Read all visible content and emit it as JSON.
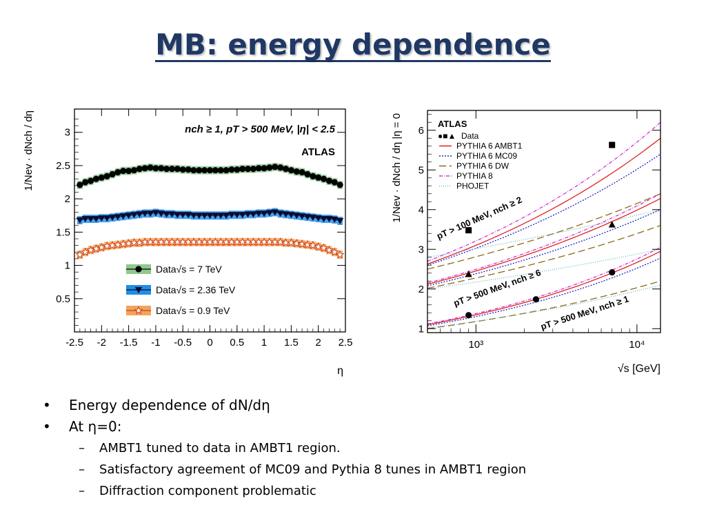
{
  "title": "MB: energy dependence",
  "bullets": [
    {
      "text": "Energy dependence of dN/dη",
      "sub": []
    },
    {
      "text": "At η=0:",
      "sub": [
        "AMBT1 tuned to data in AMBT1 region.",
        "Satisfactory agreement of MC09 and Pythia 8 tunes in AMBT1 region",
        "Diffraction component problematic"
      ]
    }
  ],
  "chart_data": [
    {
      "type": "scatter",
      "cut_label": "nch ≥ 1, pT > 500 MeV, |η| < 2.5",
      "experiment": "ATLAS",
      "xlabel": "η",
      "ylabel": "1/Nev · dNch / dη",
      "xlim": [
        -2.5,
        2.5
      ],
      "ylim": [
        0,
        3.35
      ],
      "x_ticks": [
        "-2.5",
        "-2",
        "-1.5",
        "-1",
        "-0.5",
        "0",
        "0.5",
        "1",
        "1.5",
        "2",
        "2.5"
      ],
      "y_ticks": [
        "0.5",
        "1",
        "1.5",
        "2",
        "2.5",
        "3"
      ],
      "legend_position": "bottom-center",
      "x": [
        -2.4,
        -2.3,
        -2.2,
        -2.1,
        -2.0,
        -1.9,
        -1.8,
        -1.7,
        -1.6,
        -1.5,
        -1.4,
        -1.3,
        -1.2,
        -1.1,
        -1.0,
        -0.9,
        -0.8,
        -0.7,
        -0.6,
        -0.5,
        -0.4,
        -0.3,
        -0.2,
        -0.1,
        0.0,
        0.1,
        0.2,
        0.3,
        0.4,
        0.5,
        0.6,
        0.7,
        0.8,
        0.9,
        1.0,
        1.1,
        1.2,
        1.3,
        1.4,
        1.5,
        1.6,
        1.7,
        1.8,
        1.9,
        2.0,
        2.1,
        2.2,
        2.3,
        2.4
      ],
      "series": [
        {
          "name": "Data√s = 7 TeV",
          "color": "#000000",
          "band": "#8fc98f",
          "marker": "circle",
          "values": [
            2.21,
            2.25,
            2.27,
            2.3,
            2.32,
            2.34,
            2.37,
            2.4,
            2.42,
            2.42,
            2.43,
            2.45,
            2.46,
            2.47,
            2.46,
            2.46,
            2.45,
            2.45,
            2.45,
            2.44,
            2.44,
            2.43,
            2.43,
            2.43,
            2.43,
            2.43,
            2.43,
            2.43,
            2.44,
            2.44,
            2.45,
            2.45,
            2.45,
            2.46,
            2.46,
            2.47,
            2.48,
            2.47,
            2.45,
            2.43,
            2.41,
            2.4,
            2.37,
            2.34,
            2.32,
            2.3,
            2.27,
            2.25,
            2.21
          ]
        },
        {
          "name": "Data√s = 2.36 TeV",
          "color": "#0a0a30",
          "band": "#1f8fe6",
          "marker": "triangle-down",
          "values": [
            1.68,
            1.7,
            1.7,
            1.7,
            1.71,
            1.71,
            1.72,
            1.73,
            1.74,
            1.75,
            1.76,
            1.77,
            1.78,
            1.78,
            1.79,
            1.78,
            1.77,
            1.77,
            1.76,
            1.76,
            1.76,
            1.75,
            1.75,
            1.75,
            1.75,
            1.75,
            1.75,
            1.75,
            1.76,
            1.76,
            1.76,
            1.77,
            1.77,
            1.78,
            1.78,
            1.79,
            1.8,
            1.78,
            1.77,
            1.76,
            1.75,
            1.74,
            1.73,
            1.72,
            1.71,
            1.7,
            1.7,
            1.69,
            1.67
          ]
        },
        {
          "name": "Data√s = 0.9 TeV",
          "color": "#d04010",
          "band": "#f2a35c",
          "marker": "star",
          "values": [
            1.16,
            1.2,
            1.23,
            1.25,
            1.27,
            1.29,
            1.3,
            1.31,
            1.32,
            1.33,
            1.34,
            1.34,
            1.35,
            1.35,
            1.35,
            1.35,
            1.35,
            1.35,
            1.35,
            1.35,
            1.35,
            1.35,
            1.35,
            1.35,
            1.35,
            1.35,
            1.35,
            1.35,
            1.35,
            1.35,
            1.35,
            1.35,
            1.35,
            1.35,
            1.35,
            1.35,
            1.35,
            1.35,
            1.34,
            1.34,
            1.33,
            1.32,
            1.31,
            1.3,
            1.28,
            1.26,
            1.23,
            1.2,
            1.16
          ]
        }
      ]
    },
    {
      "type": "line",
      "experiment": "ATLAS",
      "xlabel": "√s [GeV]",
      "ylabel": "1/Nev · dNch / dη |η = 0",
      "x_scale": "log",
      "xlim": [
        500,
        14000
      ],
      "ylim": [
        0.9,
        6.5
      ],
      "x_ticks": [
        "10³",
        "10⁴"
      ],
      "y_ticks": [
        "1",
        "2",
        "3",
        "4",
        "5",
        "6"
      ],
      "legend_position": "top-left",
      "region_labels": [
        "pT > 100 MeV, nch ≥ 2",
        "pT > 500 MeV, nch ≥ 6",
        "pT > 500 MeV, nch ≥ 1"
      ],
      "legend": [
        {
          "label": "Data",
          "kind": "markers",
          "markers": [
            "●",
            "■",
            "▲"
          ]
        },
        {
          "label": "PYTHIA 6 AMBT1",
          "color": "#e02020",
          "dash": "solid"
        },
        {
          "label": "PYTHIA 6 MC09",
          "color": "#2020c0",
          "dash": "dot"
        },
        {
          "label": "PYTHIA 6 DW",
          "color": "#8b6914",
          "dash": "long-dash"
        },
        {
          "label": "PYTHIA 8",
          "color": "#cc33cc",
          "dash": "dash-dot"
        },
        {
          "label": "PHOJET",
          "color": "#66bbbb",
          "dash": "fine-dot"
        }
      ],
      "data_points": [
        {
          "region": "pT > 100 MeV, nch ≥ 2",
          "marker": "square",
          "points": [
            {
              "x": 900,
              "y": 3.48
            },
            {
              "x": 7000,
              "y": 5.63
            }
          ]
        },
        {
          "region": "pT > 500 MeV, nch ≥ 6",
          "marker": "triangle",
          "points": [
            {
              "x": 900,
              "y": 2.37
            },
            {
              "x": 7000,
              "y": 3.62
            }
          ]
        },
        {
          "region": "pT > 500 MeV, nch ≥ 1",
          "marker": "circle",
          "points": [
            {
              "x": 900,
              "y": 1.34
            },
            {
              "x": 2360,
              "y": 1.74
            },
            {
              "x": 7000,
              "y": 2.42
            }
          ]
        }
      ],
      "curves": {
        "pT > 100 MeV, nch ≥ 2": {
          "PYTHIA 6 AMBT1": [
            2.63,
            5.8
          ],
          "PYTHIA 6 MC09": [
            2.6,
            5.4
          ],
          "PYTHIA 6 DW": [
            2.5,
            4.4
          ],
          "PYTHIA 8": [
            2.7,
            6.2
          ],
          "PHOJET": [
            2.8,
            4.0
          ]
        },
        "pT > 500 MeV, nch ≥ 6": {
          "PYTHIA 6 AMBT1": [
            2.12,
            4.28
          ],
          "PYTHIA 6 MC09": [
            2.08,
            4.0
          ],
          "PYTHIA 6 DW": [
            2.02,
            3.6
          ],
          "PYTHIA 8": [
            2.15,
            4.4
          ],
          "PHOJET": [
            2.0,
            3.0
          ]
        },
        "pT > 500 MeV, nch ≥ 1": {
          "PYTHIA 6 AMBT1": [
            1.1,
            2.95
          ],
          "PYTHIA 6 MC09": [
            1.07,
            2.78
          ],
          "PYTHIA 6 DW": [
            1.0,
            2.2
          ],
          "PYTHIA 8": [
            1.12,
            3.05
          ],
          "PHOJET": [
            1.02,
            2.1
          ]
        }
      }
    }
  ]
}
